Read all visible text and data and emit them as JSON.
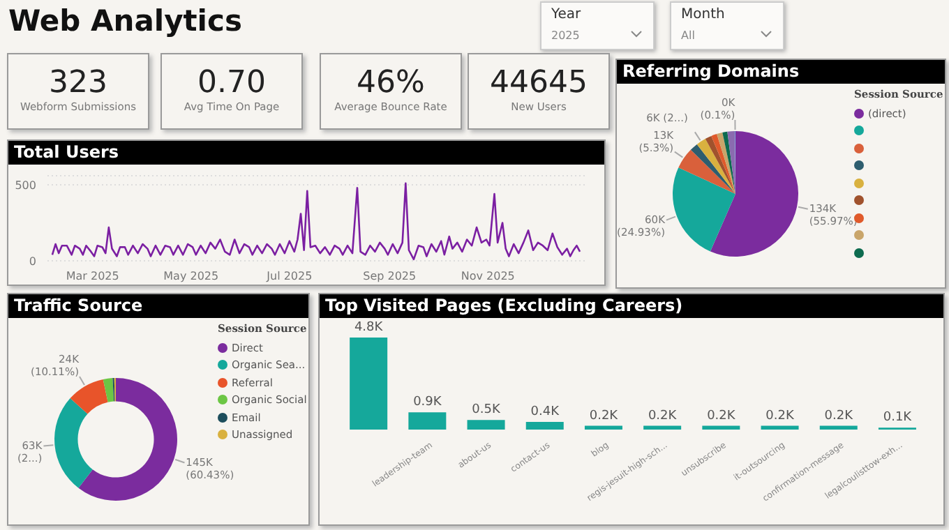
{
  "chart_data": [
    {
      "type": "other",
      "title": "Web Analytics",
      "categories": [
        "Webform Submissions",
        "Avg Time On Page",
        "Average Bounce Rate",
        "New Users"
      ],
      "value_labels": [
        "323",
        "0.70",
        "46%",
        "44645"
      ],
      "annotations": [
        "Year",
        "2025",
        "Month",
        "All"
      ]
    },
    {
      "type": "line",
      "title": "Total Users",
      "color": "#7b1fa2",
      "xlim": [
        "2025-02-01",
        "2025-12-31"
      ],
      "xticks": [
        {
          "value": "2025-03-01",
          "label": "Mar 2025"
        },
        {
          "value": "2025-05-01",
          "label": "May 2025"
        },
        {
          "value": "2025-07-01",
          "label": "Jul 2025"
        },
        {
          "value": "2025-09-01",
          "label": "Sep 2025"
        },
        {
          "value": "2025-11-01",
          "label": "Nov 2025"
        }
      ],
      "ylim": [
        0,
        560
      ],
      "yticks": [
        0,
        500
      ],
      "grid": "y",
      "x": [
        "2025-02-04",
        "2025-02-06",
        "2025-02-08",
        "2025-02-10",
        "2025-02-13",
        "2025-02-16",
        "2025-02-18",
        "2025-02-21",
        "2025-02-23",
        "2025-02-25",
        "2025-02-28",
        "2025-03-02",
        "2025-03-04",
        "2025-03-07",
        "2025-03-09",
        "2025-03-11",
        "2025-03-13",
        "2025-03-16",
        "2025-03-18",
        "2025-03-21",
        "2025-03-23",
        "2025-03-26",
        "2025-03-29",
        "2025-04-01",
        "2025-04-04",
        "2025-04-06",
        "2025-04-09",
        "2025-04-12",
        "2025-04-15",
        "2025-04-18",
        "2025-04-20",
        "2025-04-23",
        "2025-04-26",
        "2025-04-29",
        "2025-05-02",
        "2025-05-04",
        "2025-05-07",
        "2025-05-10",
        "2025-05-13",
        "2025-05-16",
        "2025-05-19",
        "2025-05-22",
        "2025-05-25",
        "2025-05-28",
        "2025-05-31",
        "2025-06-03",
        "2025-06-06",
        "2025-06-08",
        "2025-06-11",
        "2025-06-14",
        "2025-06-17",
        "2025-06-20",
        "2025-06-22",
        "2025-06-25",
        "2025-06-28",
        "2025-07-01",
        "2025-07-04",
        "2025-07-06",
        "2025-07-08",
        "2025-07-10",
        "2025-07-12",
        "2025-07-14",
        "2025-07-17",
        "2025-07-20",
        "2025-07-23",
        "2025-07-26",
        "2025-07-29",
        "2025-08-01",
        "2025-08-03",
        "2025-08-06",
        "2025-08-09",
        "2025-08-12",
        "2025-08-14",
        "2025-08-17",
        "2025-08-20",
        "2025-08-23",
        "2025-08-26",
        "2025-08-29",
        "2025-08-31",
        "2025-09-03",
        "2025-09-06",
        "2025-09-09",
        "2025-09-11",
        "2025-09-13",
        "2025-09-16",
        "2025-09-19",
        "2025-09-22",
        "2025-09-24",
        "2025-09-27",
        "2025-09-30",
        "2025-10-03",
        "2025-10-05",
        "2025-10-08",
        "2025-10-10",
        "2025-10-13",
        "2025-10-16",
        "2025-10-19",
        "2025-10-22",
        "2025-10-25",
        "2025-10-28",
        "2025-10-31",
        "2025-11-02",
        "2025-11-05",
        "2025-11-07",
        "2025-11-10",
        "2025-11-12",
        "2025-11-14",
        "2025-11-17",
        "2025-11-20",
        "2025-11-23",
        "2025-11-26",
        "2025-11-29",
        "2025-12-02",
        "2025-12-05",
        "2025-12-08",
        "2025-12-11",
        "2025-12-14",
        "2025-12-17",
        "2025-12-20",
        "2025-12-22",
        "2025-12-24",
        "2025-12-26",
        "2025-12-28"
      ],
      "values": [
        40,
        110,
        50,
        100,
        100,
        40,
        100,
        80,
        40,
        100,
        60,
        30,
        100,
        90,
        50,
        220,
        80,
        30,
        90,
        90,
        40,
        100,
        50,
        110,
        80,
        30,
        100,
        40,
        100,
        90,
        40,
        100,
        40,
        110,
        90,
        40,
        100,
        50,
        120,
        80,
        140,
        60,
        40,
        140,
        50,
        110,
        90,
        40,
        100,
        50,
        110,
        80,
        40,
        110,
        50,
        130,
        60,
        140,
        310,
        70,
        460,
        90,
        100,
        50,
        90,
        40,
        100,
        80,
        40,
        100,
        50,
        480,
        60,
        40,
        100,
        60,
        120,
        80,
        40,
        110,
        50,
        120,
        510,
        70,
        10,
        100,
        90,
        30,
        110,
        60,
        130,
        40,
        160,
        80,
        120,
        60,
        140,
        100,
        220,
        120,
        140,
        100,
        440,
        120,
        250,
        80,
        30,
        110,
        50,
        120,
        200,
        70,
        120,
        100,
        70,
        180,
        90,
        40,
        80,
        30,
        70,
        100,
        60
      ]
    },
    {
      "type": "pie",
      "title": "Referring Domains",
      "legend_title": "Session Source",
      "legend": "right",
      "categories": [
        "(direct)",
        null,
        null,
        null,
        null,
        null,
        null,
        null,
        null,
        null,
        null
      ],
      "values": [
        134000,
        60000,
        13000,
        5000,
        6000,
        4000,
        3500,
        3500,
        3000,
        4500,
        400
      ],
      "colors": [
        "#7b2c9e",
        "#15a89b",
        "#d9603b",
        "#2e5d6e",
        "#d9b13f",
        "#a0522d",
        "#e05a2b",
        "#c9a56a",
        "#0d6b4f",
        "#8a6bb0",
        "#6f9fd8"
      ],
      "value_labels": [
        "134K\n(55.97%)",
        "60K\n(24.93%)",
        "13K\n(5.3%)",
        null,
        "6K (2...)",
        null,
        null,
        null,
        null,
        null,
        "0K\n(0.1%)"
      ]
    },
    {
      "type": "donut",
      "title": "Traffic Source",
      "legend_title": "Session Source",
      "legend": "right",
      "categories": [
        "Direct",
        "Organic Sea...",
        "Referral",
        "Organic Social",
        "Email",
        "Unassigned"
      ],
      "values": [
        145000,
        63000,
        24000,
        6000,
        1000,
        1000
      ],
      "colors": [
        "#7b2c9e",
        "#15a89b",
        "#e8542a",
        "#6cc644",
        "#1d4e5c",
        "#d9b13f"
      ],
      "value_labels": [
        "145K\n(60.43%)",
        "63K\n(2...)",
        "24K\n(10.11%)",
        null,
        null,
        null
      ]
    },
    {
      "type": "bar",
      "title": "Top Visited Pages (Excluding Careers)",
      "color": "#15a89b",
      "categories": [
        null,
        "leadership-team",
        "about-us",
        "contact-us",
        "blog",
        "regis-jesuit-high-sch...",
        "unsubscribe",
        "it-outsourcing",
        "confirmation-message",
        "legalcoulisttow-exh..."
      ],
      "values": [
        4.8,
        0.9,
        0.5,
        0.4,
        0.2,
        0.2,
        0.2,
        0.2,
        0.2,
        0.1
      ],
      "value_labels": [
        "4.8K",
        "0.9K",
        "0.5K",
        "0.4K",
        "0.2K",
        "0.2K",
        "0.2K",
        "0.2K",
        "0.2K",
        "0.1K"
      ]
    }
  ]
}
